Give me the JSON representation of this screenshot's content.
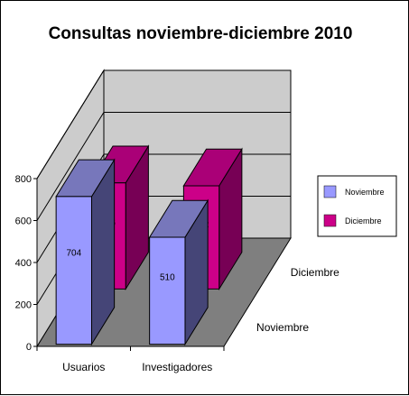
{
  "chart_data": {
    "type": "bar",
    "title": "Consultas noviembre-diciembre 2010",
    "categories": [
      "Usuarios",
      "Investigadores"
    ],
    "series": [
      {
        "name": "Noviembre",
        "values": [
          704,
          510
        ],
        "color": "#9999ff"
      },
      {
        "name": "Diciembre",
        "values": [
          506,
          492
        ],
        "color": "#cc0088"
      }
    ],
    "yticks": [
      0,
      200,
      400,
      600,
      800
    ],
    "ylim": [
      0,
      800
    ],
    "grid": true,
    "legend": "right",
    "three_d": true,
    "colors": {
      "floor": "#7f7f7f",
      "walls": "#cccccc",
      "noviembre_top": "#7777bb",
      "noviembre_side": "#454577",
      "diciembre_top": "#aa0077",
      "diciembre_side": "#770055"
    }
  }
}
